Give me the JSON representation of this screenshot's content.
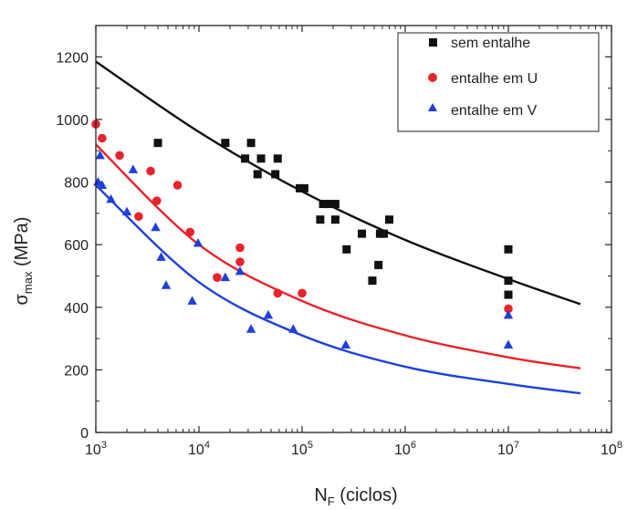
{
  "chart_data": {
    "type": "scatter",
    "title": "",
    "xlabel": {
      "main": "N",
      "sub": "F",
      "rest": " (ciclos)"
    },
    "ylabel": {
      "main": "σ",
      "sub": "max",
      "rest": " (MPa)"
    },
    "xscale": "log",
    "xlim": [
      1000,
      100000000
    ],
    "ylim": [
      0,
      1300
    ],
    "x_ticks": [
      {
        "value": 1000,
        "base": "10",
        "exp": "3"
      },
      {
        "value": 10000,
        "base": "10",
        "exp": "4"
      },
      {
        "value": 100000,
        "base": "10",
        "exp": "5"
      },
      {
        "value": 1000000,
        "base": "10",
        "exp": "6"
      },
      {
        "value": 10000000,
        "base": "10",
        "exp": "7"
      },
      {
        "value": 100000000,
        "base": "10",
        "exp": "8"
      }
    ],
    "y_ticks": [
      {
        "value": 0,
        "label": "0"
      },
      {
        "value": 200,
        "label": "200"
      },
      {
        "value": 400,
        "label": "400"
      },
      {
        "value": 600,
        "label": "600"
      },
      {
        "value": 800,
        "label": "800"
      },
      {
        "value": 1000,
        "label": "1000"
      },
      {
        "value": 1200,
        "label": "1200"
      }
    ],
    "legend_position": "top-right",
    "series": [
      {
        "name": "sem entalhe",
        "marker": "square",
        "color": "#111111",
        "points": [
          [
            4000,
            925
          ],
          [
            18000,
            925
          ],
          [
            32000,
            925
          ],
          [
            28000,
            875
          ],
          [
            40000,
            875
          ],
          [
            58000,
            875
          ],
          [
            37000,
            825
          ],
          [
            55000,
            825
          ],
          [
            95000,
            780
          ],
          [
            105000,
            780
          ],
          [
            185000,
            730
          ],
          [
            160000,
            730
          ],
          [
            210000,
            730
          ],
          [
            150000,
            680
          ],
          [
            210000,
            680
          ],
          [
            700000,
            680
          ],
          [
            380000,
            635
          ],
          [
            570000,
            635
          ],
          [
            620000,
            635
          ],
          [
            270000,
            585
          ],
          [
            550000,
            535
          ],
          [
            480000,
            485
          ],
          [
            10000000,
            585
          ],
          [
            10000000,
            485
          ],
          [
            10000000,
            440
          ]
        ],
        "fit": [
          [
            1000,
            1185
          ],
          [
            10000,
            960
          ],
          [
            100000,
            770
          ],
          [
            1000000,
            615
          ],
          [
            10000000,
            490
          ],
          [
            50000000,
            410
          ]
        ],
        "fit_color": "#111111"
      },
      {
        "name": "entalhe em U",
        "marker": "circle",
        "color": "#e8232b",
        "points": [
          [
            1000,
            985
          ],
          [
            1150,
            940
          ],
          [
            1700,
            885
          ],
          [
            3400,
            835
          ],
          [
            6200,
            790
          ],
          [
            3900,
            740
          ],
          [
            8200,
            640
          ],
          [
            2600,
            690
          ],
          [
            25000,
            590
          ],
          [
            25000,
            545
          ],
          [
            15000,
            495
          ],
          [
            58000,
            445
          ],
          [
            100000,
            445
          ],
          [
            10000000,
            395
          ]
        ],
        "fit": [
          [
            1000,
            920
          ],
          [
            10000,
            600
          ],
          [
            100000,
            420
          ],
          [
            1000000,
            310
          ],
          [
            10000000,
            240
          ],
          [
            50000000,
            205
          ]
        ],
        "fit_color": "#e8232b"
      },
      {
        "name": "entalhe em V",
        "marker": "triangle",
        "color": "#1f3fdc",
        "points": [
          [
            1100,
            885
          ],
          [
            1050,
            800
          ],
          [
            1150,
            790
          ],
          [
            2300,
            840
          ],
          [
            1400,
            745
          ],
          [
            2000,
            705
          ],
          [
            3800,
            655
          ],
          [
            9800,
            605
          ],
          [
            4300,
            560
          ],
          [
            4800,
            470
          ],
          [
            8600,
            420
          ],
          [
            18000,
            495
          ],
          [
            25000,
            515
          ],
          [
            32000,
            330
          ],
          [
            47000,
            375
          ],
          [
            82000,
            330
          ],
          [
            265000,
            280
          ],
          [
            10000000,
            375
          ],
          [
            10000000,
            280
          ]
        ],
        "fit": [
          [
            1000,
            790
          ],
          [
            10000,
            480
          ],
          [
            100000,
            310
          ],
          [
            1000000,
            210
          ],
          [
            10000000,
            155
          ],
          [
            50000000,
            125
          ]
        ],
        "fit_color": "#1f3fdc"
      }
    ]
  }
}
